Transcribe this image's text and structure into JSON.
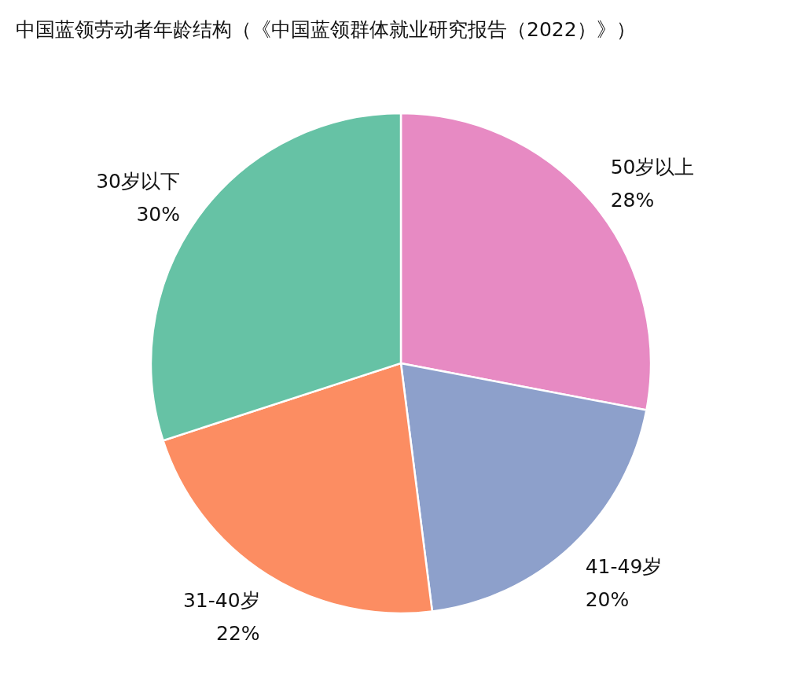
{
  "chart_data": {
    "type": "pie",
    "title": "中国蓝领劳动者年龄结构（《中国蓝领群体就业研究报告（2022）》）",
    "categories": [
      "50岁以上",
      "41-49岁",
      "31-40岁",
      "30岁以下"
    ],
    "values": [
      28,
      20,
      22,
      30
    ],
    "value_labels": [
      "28%",
      "20%",
      "22%",
      "30%"
    ],
    "colors": [
      "#e78ac3",
      "#8da0cb",
      "#fc8d62",
      "#66c2a5"
    ]
  }
}
